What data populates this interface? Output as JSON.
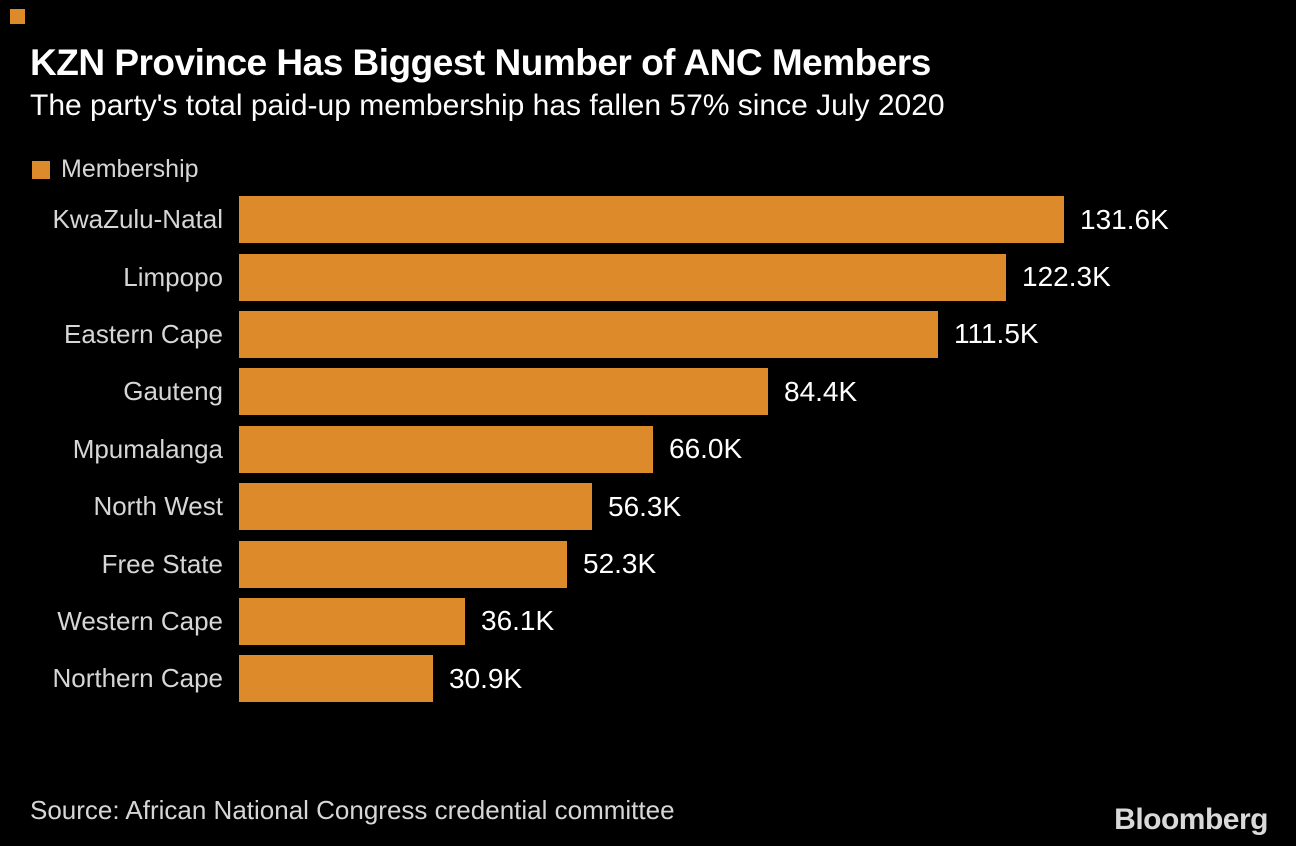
{
  "header": {
    "title": "KZN Province Has Biggest Number of ANC Members",
    "subtitle": "The party's total paid-up membership has fallen 57% since July 2020"
  },
  "legend": {
    "label": "Membership"
  },
  "chart_data": {
    "type": "bar",
    "orientation": "horizontal",
    "title": "KZN Province Has Biggest Number of ANC Members",
    "subtitle": "The party's total paid-up membership has fallen 57% since July 2020",
    "series_name": "Membership",
    "categories": [
      "KwaZulu-Natal",
      "Limpopo",
      "Eastern Cape",
      "Gauteng",
      "Mpumalanga",
      "North West",
      "Free State",
      "Western Cape",
      "Northern Cape"
    ],
    "values_thousands": [
      131.6,
      122.3,
      111.5,
      84.4,
      66.0,
      56.3,
      52.3,
      36.1,
      30.9
    ],
    "value_labels": [
      "131.6K",
      "122.3K",
      "111.5K",
      "84.4K",
      "66.0K",
      "56.3K",
      "52.3K",
      "36.1K",
      "30.9K"
    ],
    "xlim_thousands": [
      0,
      131.6
    ],
    "grid": false,
    "legend_position": "top-left",
    "bar_color": "#DD8A2B",
    "source_note": "Source: African National Congress credential committee"
  },
  "footer": {
    "source": "Source: African National Congress credential committee",
    "logo": "Bloomberg"
  },
  "colors": {
    "background": "#000000",
    "bar": "#DD8A2B",
    "title_text": "#FFFFFF",
    "category_label": "#D6D6D6",
    "value_label": "#FFFFFF",
    "source_text": "#D6D6D6",
    "logo_text": "#D9D9D9"
  }
}
